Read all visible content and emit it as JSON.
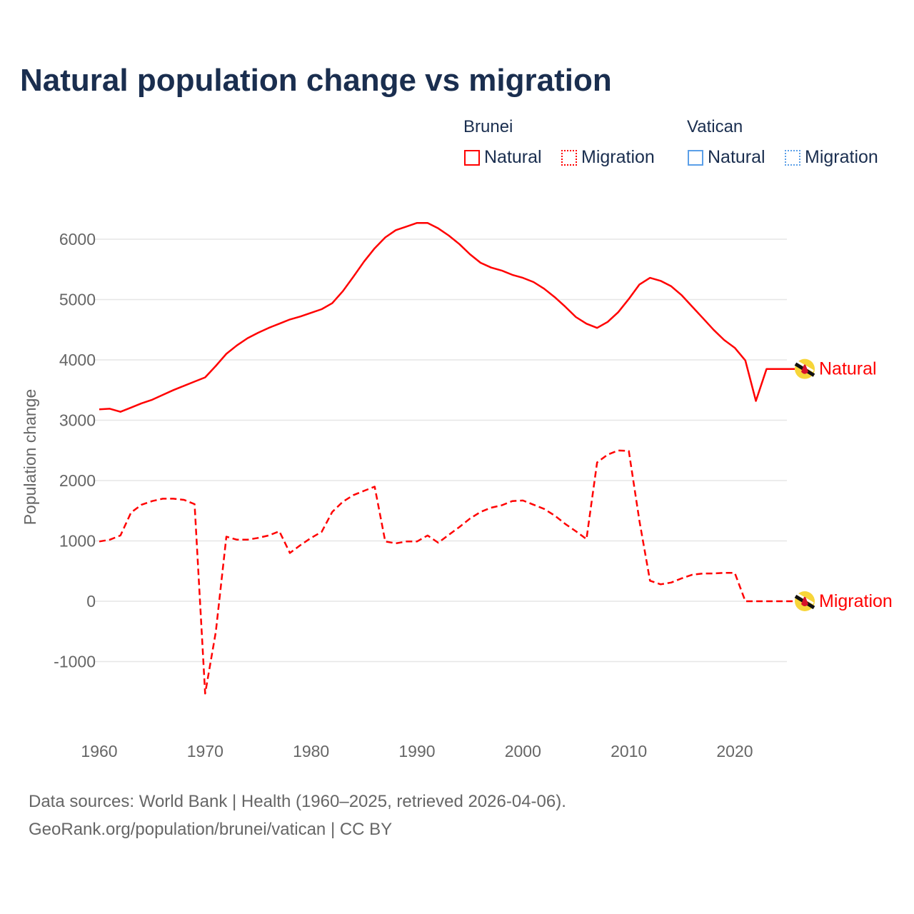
{
  "title": "Natural population change vs migration",
  "legend": {
    "groups": [
      {
        "name": "Brunei",
        "color": "#ff0000",
        "items": [
          "Natural",
          "Migration"
        ]
      },
      {
        "name": "Vatican",
        "color": "#5b9fe8",
        "items": [
          "Natural",
          "Migration"
        ]
      }
    ]
  },
  "footer": {
    "line1": "Data sources: World Bank | Health (1960–2025, retrieved 2026-04-06).",
    "line2": "GeoRank.org/population/brunei/vatican | CC BY"
  },
  "chart_data": {
    "type": "line",
    "title": "Natural population change vs migration",
    "xlabel": "",
    "ylabel": "Population change",
    "xlim": [
      1960,
      2025
    ],
    "ylim": [
      -1600,
      6500
    ],
    "xticks": [
      1960,
      1970,
      1980,
      1990,
      2000,
      2010,
      2020
    ],
    "yticks": [
      -1000,
      0,
      1000,
      2000,
      3000,
      4000,
      5000,
      6000
    ],
    "grid": true,
    "x": [
      1960,
      1961,
      1962,
      1963,
      1964,
      1965,
      1966,
      1967,
      1968,
      1969,
      1970,
      1971,
      1972,
      1973,
      1974,
      1975,
      1976,
      1977,
      1978,
      1979,
      1980,
      1981,
      1982,
      1983,
      1984,
      1985,
      1986,
      1987,
      1988,
      1989,
      1990,
      1991,
      1992,
      1993,
      1994,
      1995,
      1996,
      1997,
      1998,
      1999,
      2000,
      2001,
      2002,
      2003,
      2004,
      2005,
      2006,
      2007,
      2008,
      2009,
      2010,
      2011,
      2012,
      2013,
      2014,
      2015,
      2016,
      2017,
      2018,
      2019,
      2020,
      2021,
      2022,
      2023,
      2024,
      2025
    ],
    "series": [
      {
        "name": "Natural",
        "country": "Brunei",
        "color": "#ff0000",
        "dash": "solid",
        "end_label": "Natural",
        "values": [
          3180,
          3190,
          3140,
          3210,
          3280,
          3340,
          3420,
          3500,
          3570,
          3640,
          3710,
          3900,
          4100,
          4240,
          4360,
          4450,
          4530,
          4600,
          4670,
          4720,
          4780,
          4840,
          4940,
          5140,
          5380,
          5630,
          5850,
          6030,
          6150,
          6210,
          6270,
          6270,
          6180,
          6060,
          5920,
          5750,
          5610,
          5530,
          5480,
          5410,
          5360,
          5290,
          5180,
          5040,
          4880,
          4710,
          4600,
          4530,
          4630,
          4790,
          5010,
          5250,
          5360,
          5310,
          5220,
          5070,
          4880,
          4690,
          4500,
          4330,
          4200,
          3990,
          3320,
          3850,
          3850,
          3850
        ]
      },
      {
        "name": "Migration",
        "country": "Brunei",
        "color": "#ff0000",
        "dash": "dashed",
        "end_label": "Migration",
        "values": [
          990,
          1020,
          1090,
          1470,
          1600,
          1660,
          1700,
          1700,
          1680,
          1610,
          -1530,
          -510,
          1070,
          1020,
          1020,
          1050,
          1090,
          1160,
          800,
          930,
          1050,
          1150,
          1480,
          1650,
          1760,
          1830,
          1900,
          990,
          960,
          990,
          990,
          1090,
          970,
          1100,
          1230,
          1370,
          1480,
          1550,
          1590,
          1660,
          1670,
          1600,
          1530,
          1420,
          1280,
          1160,
          1030,
          2300,
          2430,
          2500,
          2490,
          1330,
          340,
          280,
          310,
          380,
          440,
          460,
          460,
          470,
          470,
          0,
          0,
          0,
          0,
          0
        ]
      }
    ]
  }
}
